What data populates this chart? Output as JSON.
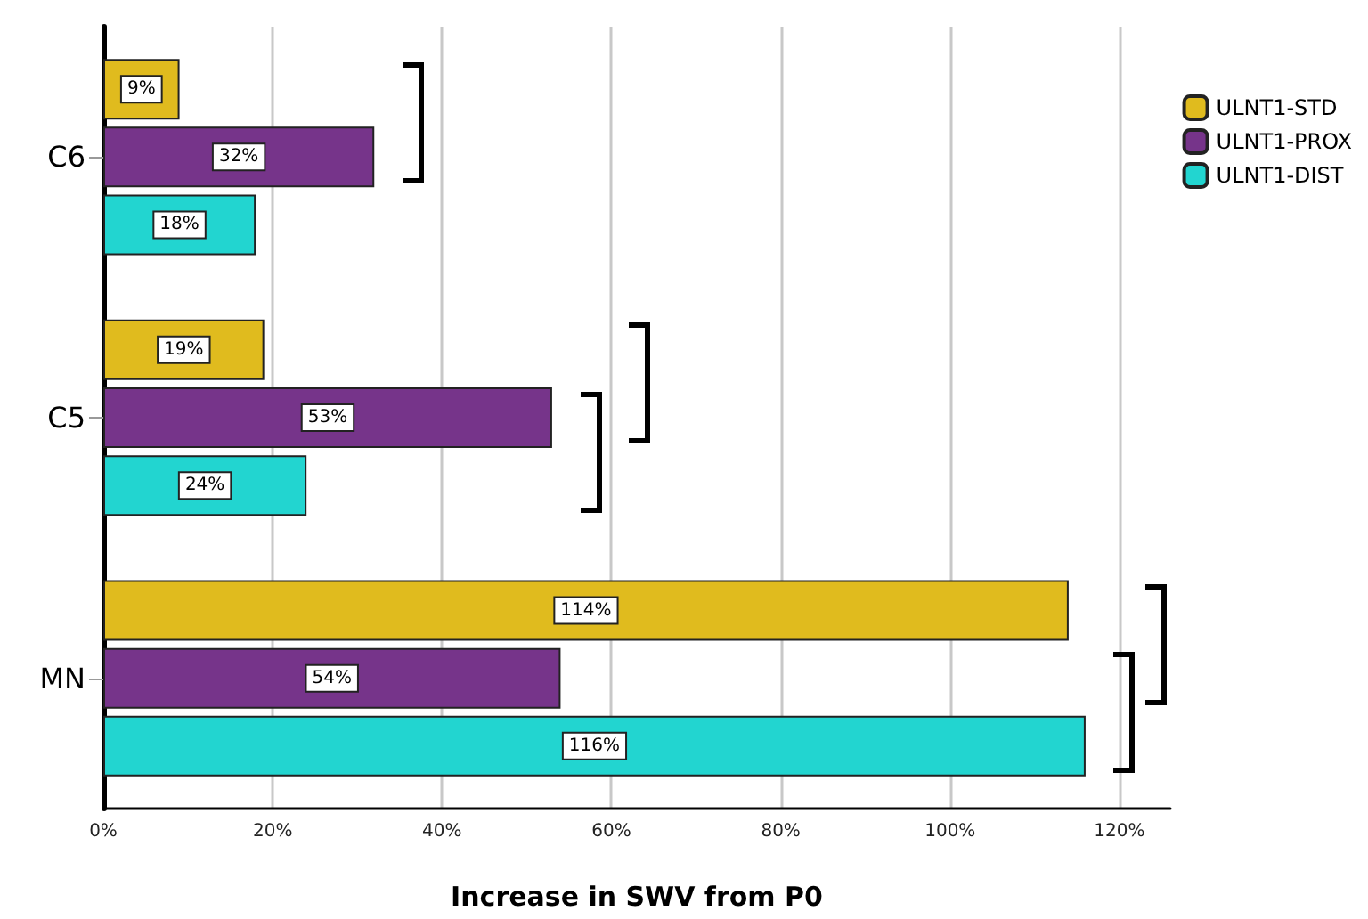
{
  "chart_data": {
    "type": "bar",
    "orientation": "horizontal",
    "xlabel": "Increase in SWV from P0",
    "categories": [
      "C6",
      "C5",
      "MN"
    ],
    "series": [
      {
        "name": "ULNT1-STD",
        "color": "#e0bb1e",
        "values": [
          9,
          19,
          114
        ],
        "value_labels": [
          "9%",
          "19%",
          "114%"
        ]
      },
      {
        "name": "ULNT1-PROX",
        "color": "#76348a",
        "values": [
          32,
          53,
          54
        ],
        "value_labels": [
          "32%",
          "53%",
          "54%"
        ]
      },
      {
        "name": "ULNT1-DIST",
        "color": "#22d5d0",
        "values": [
          18,
          24,
          116
        ],
        "value_labels": [
          "18%",
          "24%",
          "116%"
        ]
      }
    ],
    "xlim": [
      0,
      126
    ],
    "xticks": [
      {
        "value": 0,
        "label": "0%"
      },
      {
        "value": 20,
        "label": "20%"
      },
      {
        "value": 40,
        "label": "40%"
      },
      {
        "value": 60,
        "label": "60%"
      },
      {
        "value": 80,
        "label": "80%"
      },
      {
        "value": 100,
        "label": "100%"
      },
      {
        "value": 120,
        "label": "120%"
      }
    ],
    "grid": "x",
    "legend": "top right"
  }
}
